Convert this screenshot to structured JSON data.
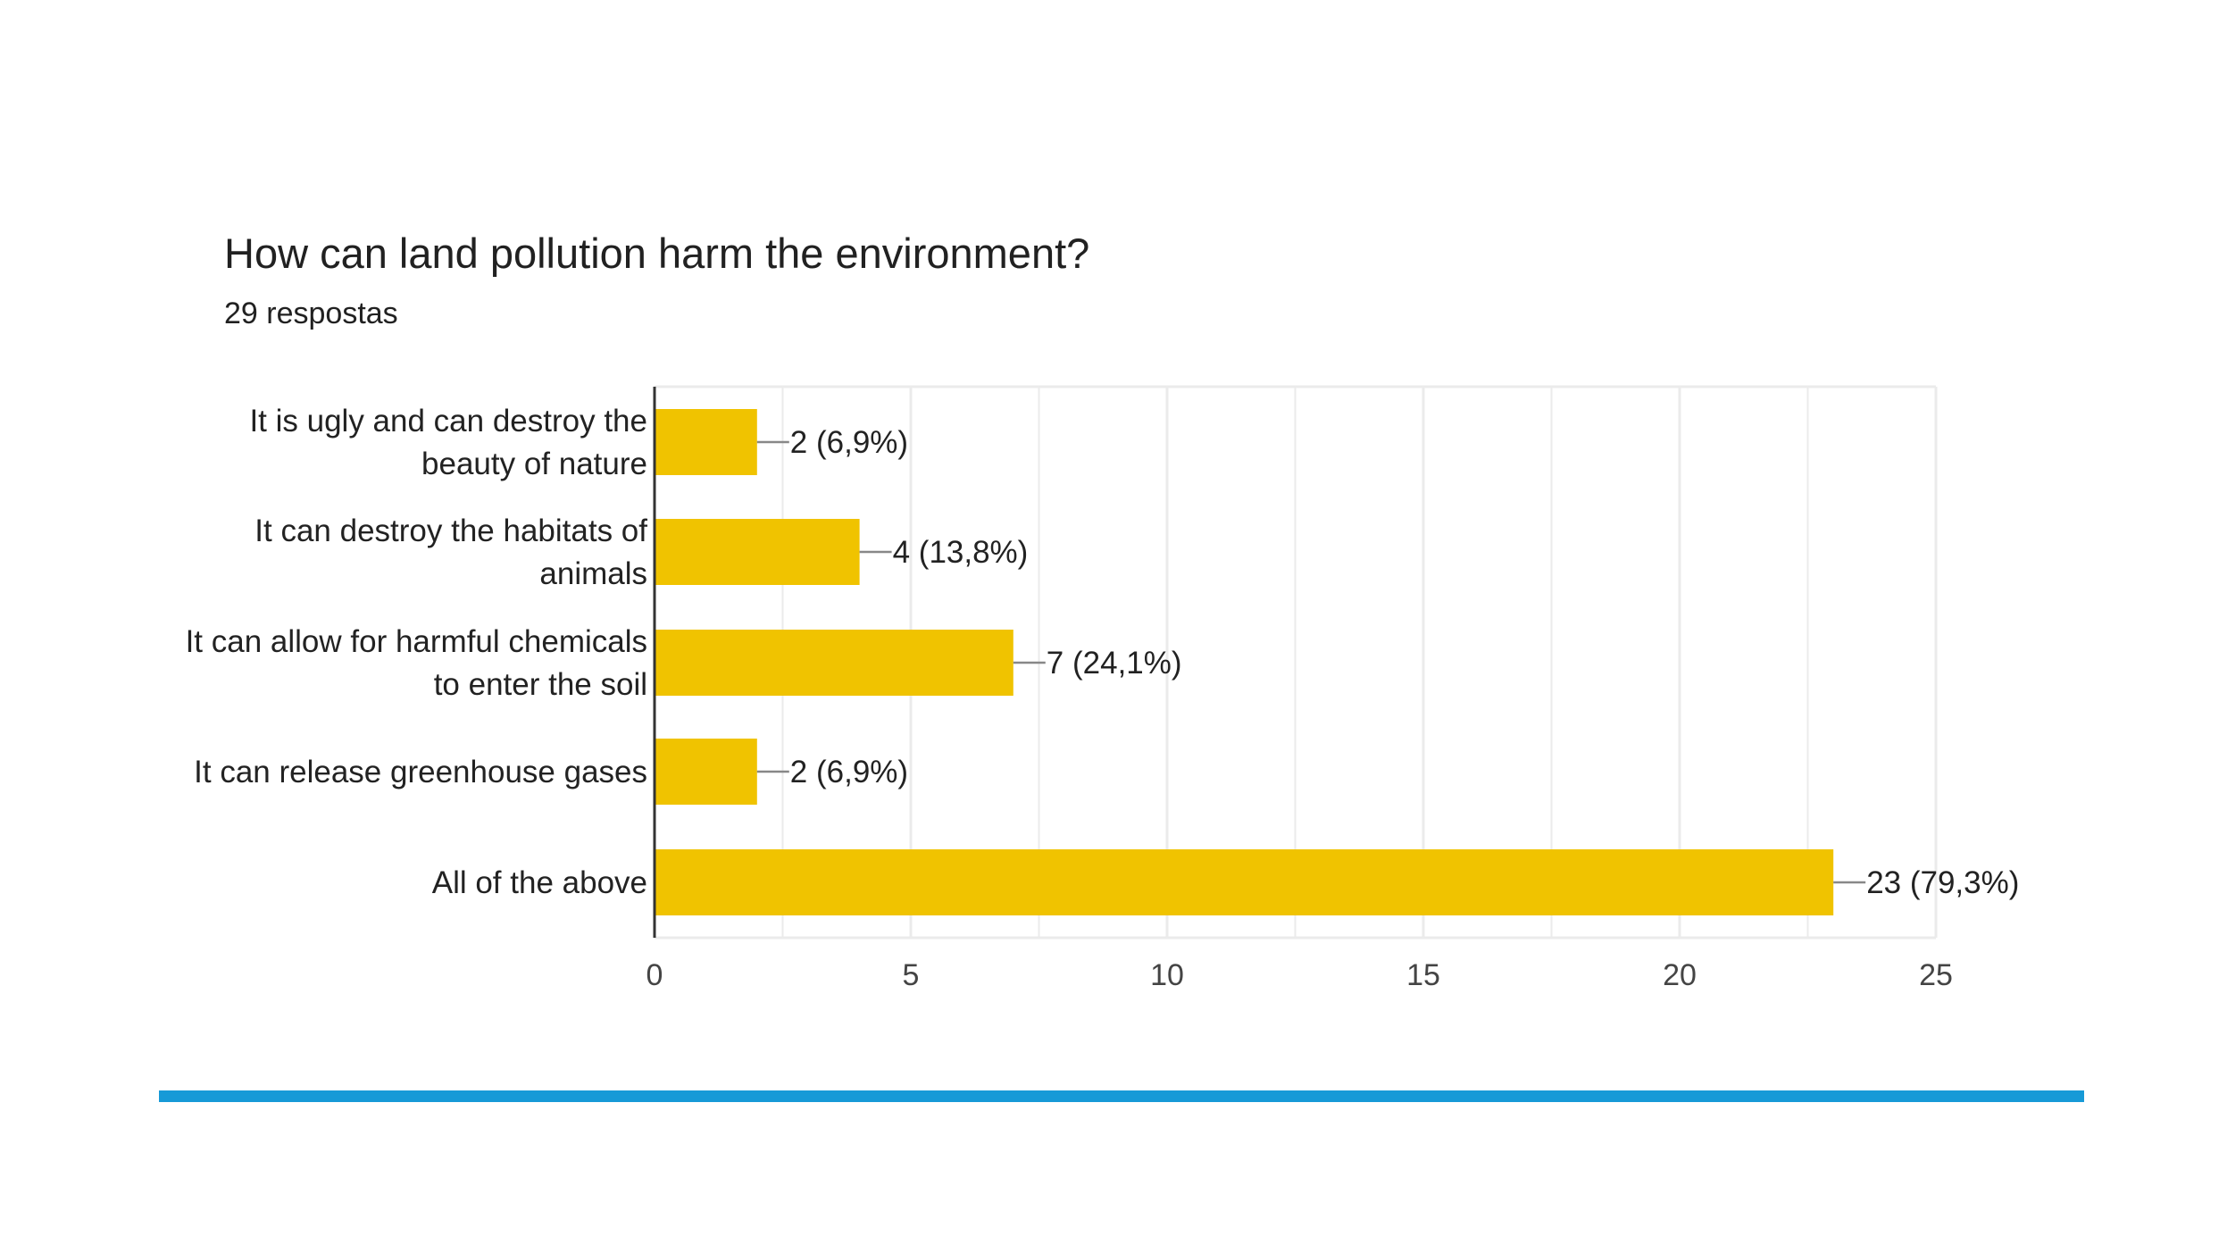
{
  "title": "How can land pollution harm the environment?",
  "subtitle": "29 respostas",
  "colors": {
    "bar": "#f0c300",
    "gridline": "#ebebeb",
    "axis": "#333333",
    "leader": "#888888",
    "footer_bar": "#179ad7",
    "text": "#212121"
  },
  "chart_data": {
    "type": "bar",
    "orientation": "horizontal",
    "title": "How can land pollution harm the environment?",
    "subtitle": "29 respostas",
    "categories": [
      [
        "It is ugly and can destroy the",
        "beauty of nature"
      ],
      [
        "It can destroy the habitats of",
        "animals"
      ],
      [
        "It can allow for harmful chemicals",
        "to enter the soil"
      ],
      [
        "It can release greenhouse gases"
      ],
      [
        "All of the above"
      ]
    ],
    "values": [
      2,
      4,
      7,
      2,
      23
    ],
    "data_labels": [
      "2 (6,9%)",
      "4 (13,8%)",
      "7 (24,1%)",
      "2 (6,9%)",
      "23 (79,3%)"
    ],
    "xlim": [
      0,
      25
    ],
    "xticks": [
      0,
      5,
      10,
      15,
      20,
      25
    ],
    "xtick_labels": [
      "0",
      "5",
      "10",
      "15",
      "20",
      "25"
    ],
    "grid": true,
    "legend": "none"
  }
}
